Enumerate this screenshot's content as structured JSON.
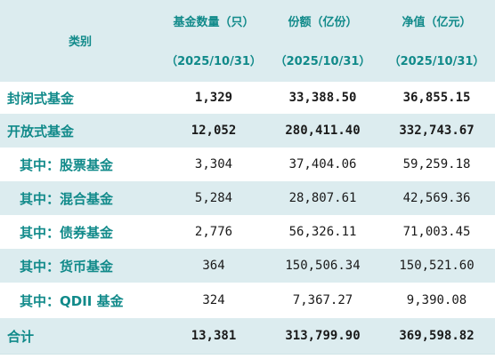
{
  "header": {
    "category": "类别",
    "col1": "基金数量（只）",
    "col2": "份额（亿份）",
    "col3": "净值（亿元）",
    "date": "（2025/10/31）"
  },
  "rows": [
    {
      "name": "封闭式基金",
      "count": "1,329",
      "shares": "33,388.50",
      "nav": "36,855.15"
    },
    {
      "name": "开放式基金",
      "count": "12,052",
      "shares": "280,411.40",
      "nav": "332,743.67"
    },
    {
      "name": "其中：股票基金",
      "count": "3,304",
      "shares": "37,404.06",
      "nav": "59,259.18"
    },
    {
      "name": "其中：混合基金",
      "count": "5,284",
      "shares": "28,807.61",
      "nav": "42,569.36"
    },
    {
      "name": "其中：债券基金",
      "count": "2,776",
      "shares": "56,326.11",
      "nav": "71,003.45"
    },
    {
      "name": "其中：货币基金",
      "count": "364",
      "shares": "150,506.34",
      "nav": "150,521.60"
    },
    {
      "name": "其中：QDII 基金",
      "count": "324",
      "shares": "7,367.27",
      "nav": "9,390.08"
    },
    {
      "name": "合计",
      "count": "13,381",
      "shares": "313,799.90",
      "nav": "369,598.82"
    }
  ]
}
